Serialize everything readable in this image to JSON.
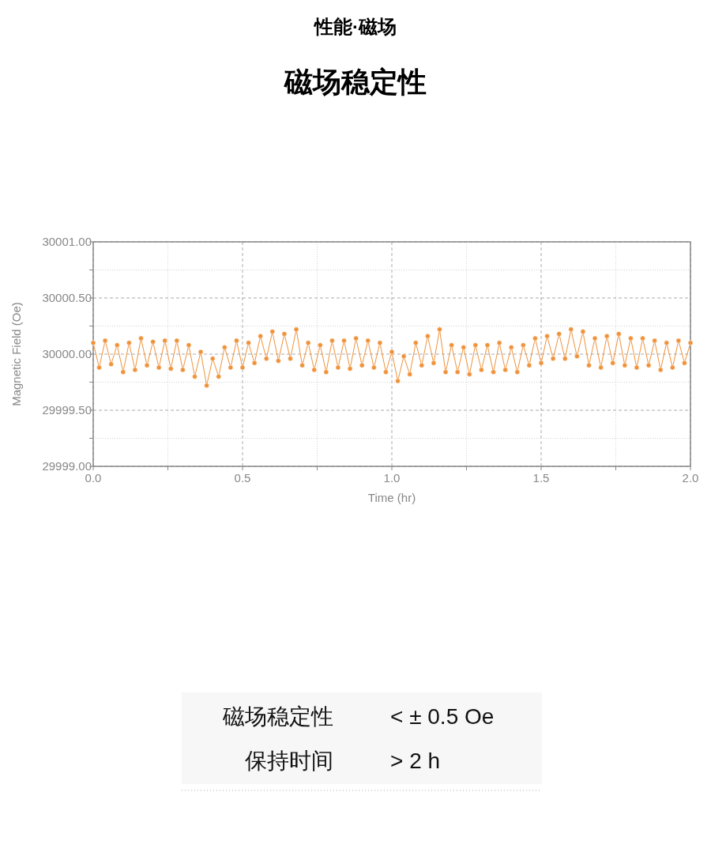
{
  "chart_data": {
    "type": "line",
    "subtitle": "性能·磁场",
    "title": "磁场稳定性",
    "xlabel": "Time (hr)",
    "ylabel": "Magnetic Field (Oe)",
    "x": [
      0,
      0.02,
      0.04,
      0.06,
      0.08,
      0.1,
      0.12,
      0.14,
      0.16,
      0.18,
      0.2,
      0.22,
      0.24,
      0.26,
      0.28,
      0.3,
      0.32,
      0.34,
      0.36,
      0.38,
      0.4,
      0.42,
      0.44,
      0.46,
      0.48,
      0.5,
      0.52,
      0.54,
      0.56,
      0.58,
      0.6,
      0.62,
      0.64,
      0.66,
      0.68,
      0.7,
      0.72,
      0.74,
      0.76,
      0.78,
      0.8,
      0.82,
      0.84,
      0.86,
      0.88,
      0.9,
      0.92,
      0.94,
      0.96,
      0.98,
      1.0,
      1.02,
      1.04,
      1.06,
      1.08,
      1.1,
      1.12,
      1.14,
      1.16,
      1.18,
      1.2,
      1.22,
      1.24,
      1.26,
      1.28,
      1.3,
      1.32,
      1.34,
      1.36,
      1.38,
      1.4,
      1.42,
      1.44,
      1.46,
      1.48,
      1.5,
      1.52,
      1.54,
      1.56,
      1.58,
      1.6,
      1.62,
      1.64,
      1.66,
      1.68,
      1.7,
      1.72,
      1.74,
      1.76,
      1.78,
      1.8,
      1.82,
      1.84,
      1.86,
      1.88,
      1.9,
      1.92,
      1.94,
      1.96,
      1.98,
      2.0
    ],
    "series": [
      {
        "color": "#f0923a",
        "values": [
          30000.1,
          29999.88,
          30000.12,
          29999.91,
          30000.08,
          29999.84,
          30000.1,
          29999.86,
          30000.14,
          29999.9,
          30000.11,
          29999.88,
          30000.12,
          29999.87,
          30000.12,
          29999.86,
          30000.08,
          29999.8,
          30000.02,
          29999.72,
          29999.96,
          29999.8,
          30000.06,
          29999.88,
          30000.12,
          29999.88,
          30000.1,
          29999.92,
          30000.16,
          29999.96,
          30000.2,
          29999.94,
          30000.18,
          29999.96,
          30000.22,
          29999.9,
          30000.1,
          29999.86,
          30000.08,
          29999.84,
          30000.12,
          29999.88,
          30000.12,
          29999.87,
          30000.14,
          29999.9,
          30000.12,
          29999.88,
          30000.1,
          29999.84,
          30000.02,
          29999.76,
          29999.98,
          29999.82,
          30000.1,
          29999.9,
          30000.16,
          29999.92,
          30000.22,
          29999.84,
          30000.08,
          29999.84,
          30000.06,
          29999.82,
          30000.08,
          29999.86,
          30000.08,
          29999.84,
          30000.1,
          29999.86,
          30000.06,
          29999.84,
          30000.08,
          29999.9,
          30000.14,
          29999.92,
          30000.16,
          29999.96,
          30000.18,
          29999.96,
          30000.22,
          29999.98,
          30000.2,
          29999.9,
          30000.14,
          29999.88,
          30000.16,
          29999.92,
          30000.18,
          29999.9,
          30000.14,
          29999.88,
          30000.14,
          29999.9,
          30000.12,
          29999.86,
          30000.1,
          29999.88,
          30000.12,
          29999.92,
          30000.1
        ]
      }
    ],
    "xlim": [
      0,
      2
    ],
    "xticks": [
      {
        "value": 0,
        "label": "0.0"
      },
      {
        "value": 0.25,
        "label": null
      },
      {
        "value": 0.5,
        "label": "0.5"
      },
      {
        "value": 0.75,
        "label": null
      },
      {
        "value": 1,
        "label": "1.0"
      },
      {
        "value": 1.25,
        "label": null
      },
      {
        "value": 1.5,
        "label": "1.5"
      },
      {
        "value": 1.75,
        "label": null
      },
      {
        "value": 2,
        "label": "2.0"
      }
    ],
    "ylim": [
      29999,
      30001
    ],
    "yticks": [
      {
        "value": 29999,
        "label": "29999.00"
      },
      {
        "value": 29999.25,
        "label": null
      },
      {
        "value": 29999.5,
        "label": "29999.50"
      },
      {
        "value": 29999.75,
        "label": null
      },
      {
        "value": 30000,
        "label": "30000.00"
      },
      {
        "value": 30000.25,
        "label": null
      },
      {
        "value": 30000.5,
        "label": "30000.50"
      },
      {
        "value": 30000.75,
        "label": null
      },
      {
        "value": 30001,
        "label": "30001.00"
      }
    ],
    "grid": true,
    "marker": "circle",
    "line_style": "solid",
    "annotations": [
      "磁场稳定性",
      "< ± 0.5 Oe",
      "保持时间",
      "> 2 h"
    ]
  }
}
